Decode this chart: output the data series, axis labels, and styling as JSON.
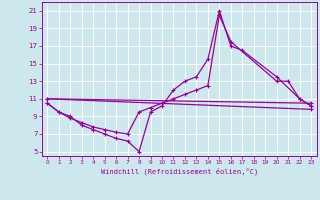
{
  "xlabel": "Windchill (Refroidissement éolien,°C)",
  "bg_color": "#cde8ec",
  "grid_color": "#ffffff",
  "line_color": "#990099",
  "xlim": [
    -0.5,
    23.5
  ],
  "ylim": [
    4.5,
    22
  ],
  "xticks": [
    0,
    1,
    2,
    3,
    4,
    5,
    6,
    7,
    8,
    9,
    10,
    11,
    12,
    13,
    14,
    15,
    16,
    17,
    18,
    19,
    20,
    21,
    22,
    23
  ],
  "yticks": [
    5,
    7,
    9,
    11,
    13,
    15,
    17,
    19,
    21
  ],
  "line1_x": [
    0,
    1,
    2,
    3,
    4,
    5,
    6,
    7,
    8,
    9,
    10,
    11,
    12,
    13,
    14,
    15,
    16,
    17,
    20,
    22,
    23
  ],
  "line1_y": [
    10.5,
    9.5,
    9.0,
    8.0,
    7.5,
    7.0,
    6.5,
    6.2,
    5.0,
    9.5,
    10.2,
    12.0,
    13.0,
    13.5,
    15.5,
    21.0,
    17.0,
    16.5,
    13.5,
    11.0,
    10.2
  ],
  "line2_x": [
    0,
    1,
    2,
    3,
    4,
    5,
    6,
    7,
    8,
    9,
    10,
    11,
    12,
    13,
    14,
    15,
    16,
    20,
    21,
    22,
    23
  ],
  "line2_y": [
    10.5,
    9.5,
    8.8,
    8.3,
    7.8,
    7.5,
    7.2,
    7.0,
    9.5,
    10.0,
    10.5,
    11.0,
    11.5,
    12.0,
    12.5,
    20.5,
    17.5,
    13.0,
    13.0,
    11.0,
    10.2
  ],
  "line3_x": [
    0,
    23
  ],
  "line3_y": [
    11.0,
    10.5
  ],
  "line4_x": [
    0,
    23
  ],
  "line4_y": [
    11.0,
    9.8
  ],
  "marker": "+",
  "markersize": 3,
  "linewidth": 0.9
}
